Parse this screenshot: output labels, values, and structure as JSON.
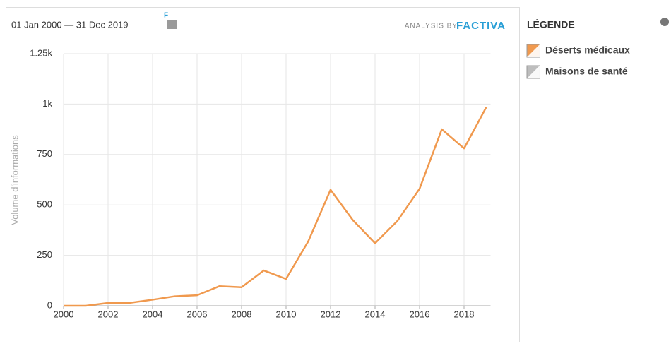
{
  "header": {
    "date_range": "01 Jan 2000 — 31 Dec 2019",
    "analysis_prefix": "ANALYSIS BY",
    "analysis_brand": "FACTIVA"
  },
  "chart_data": {
    "type": "line",
    "y_label": "Volume d'informations",
    "x": [
      2000,
      2001,
      2002,
      2003,
      2004,
      2005,
      2006,
      2007,
      2008,
      2009,
      2010,
      2011,
      2012,
      2013,
      2014,
      2015,
      2016,
      2017,
      2018,
      2019
    ],
    "series": [
      {
        "name": "Déserts médicaux",
        "color": "#f0994e",
        "hidden": false,
        "values": [
          0,
          0,
          14,
          15,
          30,
          47,
          52,
          97,
          92,
          175,
          133,
          320,
          575,
          425,
          310,
          420,
          580,
          875,
          780,
          985
        ]
      },
      {
        "name": "Maisons de santé",
        "color": "#bdbdbd",
        "hidden": true,
        "values": [
          null,
          null,
          null,
          null,
          null,
          null,
          null,
          null,
          null,
          null,
          null,
          null,
          null,
          null,
          null,
          null,
          null,
          null,
          null,
          null
        ]
      }
    ],
    "xlim": [
      2000,
      2019
    ],
    "xticks": [
      2000,
      2002,
      2004,
      2006,
      2008,
      2010,
      2012,
      2014,
      2016,
      2018
    ],
    "ylim": [
      0,
      1250
    ],
    "yticks": [
      0,
      250,
      500,
      750,
      {
        "value": 1000,
        "label": "1k"
      },
      {
        "value": 1250,
        "label": "1.25k"
      }
    ],
    "grid": true,
    "legend_title": "LÉGENDE"
  }
}
